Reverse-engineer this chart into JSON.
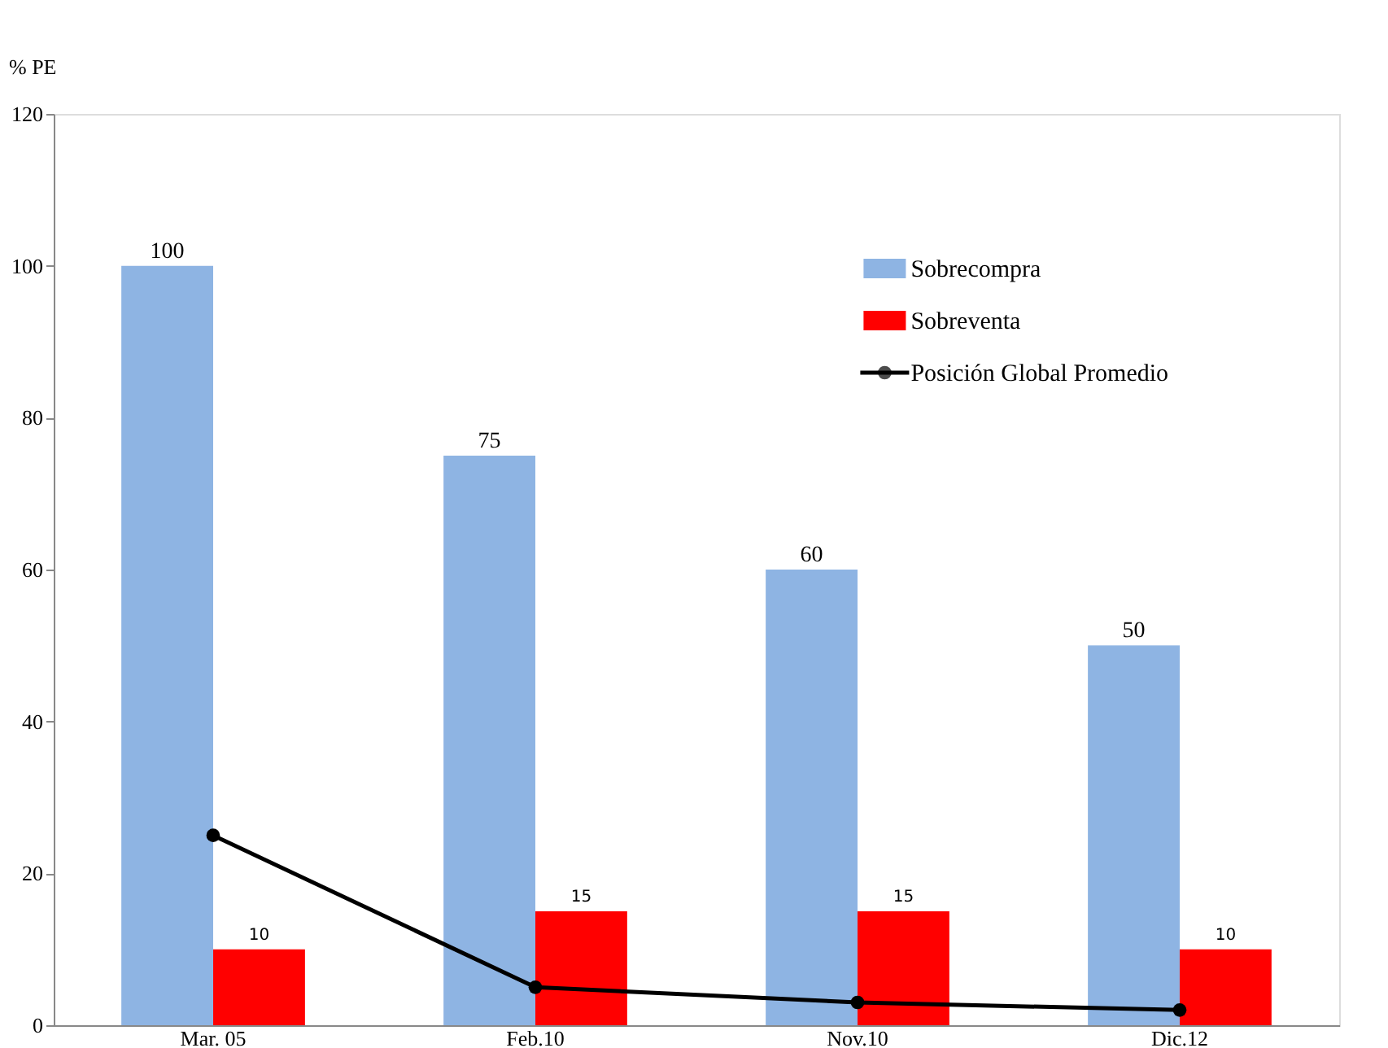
{
  "chart_data": {
    "type": "bar",
    "ylabel": "% PE",
    "categories": [
      "Mar. 05",
      "Feb.10",
      "Nov.10",
      "Dic.12"
    ],
    "series": [
      {
        "name": "Sobrecompra",
        "color": "#8eb4e3",
        "values": [
          100,
          75,
          60,
          50
        ],
        "value_labels": [
          "100",
          "75",
          "60",
          "50"
        ]
      },
      {
        "name": "Sobreventa",
        "color": "#ff0000",
        "values": [
          10,
          15,
          15,
          10
        ],
        "value_labels": [
          "10",
          "15",
          "15",
          "10"
        ]
      },
      {
        "name": "Posición Global Promedio",
        "type": "line",
        "color": "#000000",
        "values": [
          25,
          5,
          3,
          2
        ],
        "marker": "circle",
        "line_style": "solid"
      }
    ],
    "ylim": [
      0,
      120
    ],
    "yticks": [
      0,
      20,
      40,
      60,
      80,
      100,
      120
    ],
    "grid": false,
    "legend": "top right"
  }
}
